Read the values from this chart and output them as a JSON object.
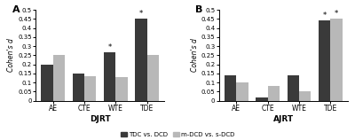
{
  "panel_A": {
    "title": "A",
    "xlabel": "DJRT",
    "ylabel": "Cohen's d",
    "categories": [
      "AE",
      "CTE",
      "WTE",
      "TDE"
    ],
    "tdc_vs_dcd": [
      0.2,
      0.15,
      0.265,
      0.45
    ],
    "m_vs_s": [
      0.25,
      0.135,
      0.13,
      0.25
    ],
    "stars_tdc": [
      false,
      false,
      true,
      true
    ],
    "stars_mvs": [
      false,
      false,
      false,
      false
    ],
    "ylim": [
      0,
      0.5
    ],
    "yticks": [
      0,
      0.05,
      0.1,
      0.15,
      0.2,
      0.25,
      0.3,
      0.35,
      0.4,
      0.45,
      0.5
    ]
  },
  "panel_B": {
    "title": "B",
    "xlabel": "AJRT",
    "ylabel": "Cohen's d",
    "categories": [
      "AE",
      "CTE",
      "WTE",
      "TDE"
    ],
    "tdc_vs_dcd": [
      0.14,
      0.02,
      0.14,
      0.44
    ],
    "m_vs_s": [
      0.1,
      0.08,
      0.05,
      0.45
    ],
    "stars_tdc": [
      false,
      false,
      false,
      true
    ],
    "stars_mvs": [
      false,
      false,
      false,
      true
    ],
    "ylim": [
      0,
      0.5
    ],
    "yticks": [
      0,
      0.05,
      0.1,
      0.15,
      0.2,
      0.25,
      0.3,
      0.35,
      0.4,
      0.45,
      0.5
    ]
  },
  "color_tdc": "#3a3a3a",
  "color_mvs": "#b8b8b8",
  "bar_width": 0.38,
  "legend_labels": [
    "TDC vs. DCD",
    "m-DCD vs. s-DCD"
  ],
  "figure_width": 4.0,
  "figure_height": 1.58,
  "dpi": 100
}
